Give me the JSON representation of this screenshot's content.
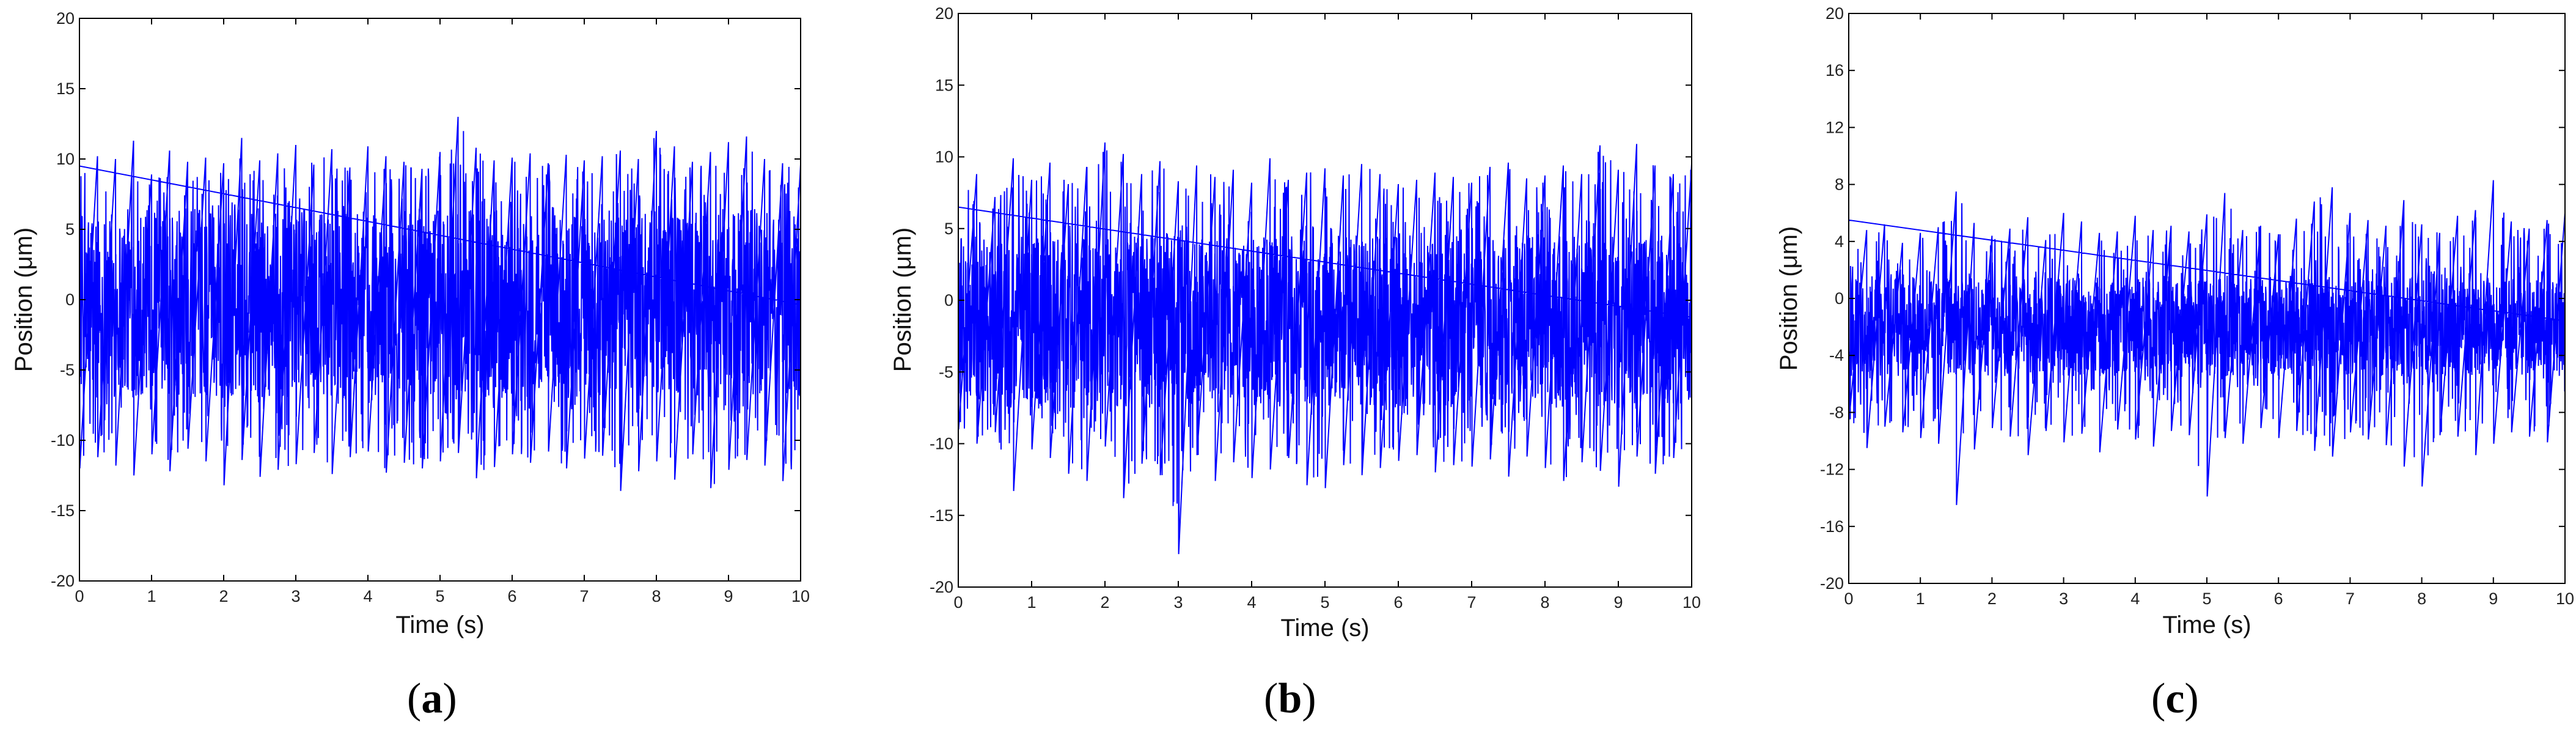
{
  "chart_data": [
    {
      "type": "line",
      "label": "a",
      "xlabel": "Time (s)",
      "ylabel": "Position (μm)",
      "xlim": [
        0,
        10
      ],
      "ylim": [
        -20,
        20
      ],
      "xticks": [
        0,
        1,
        2,
        3,
        4,
        5,
        6,
        7,
        8,
        9,
        10
      ],
      "yticks": [
        -20,
        -15,
        -10,
        -5,
        0,
        5,
        10,
        15,
        20
      ],
      "grid": false,
      "color": "#0000ff",
      "series": [
        {
          "x": [
            0.0,
            0.25,
            0.5,
            0.75,
            1.0,
            1.25,
            1.5,
            1.75,
            2.0,
            2.25,
            2.5,
            2.75,
            3.0,
            3.25,
            3.5,
            3.75,
            4.0,
            4.25,
            4.5,
            4.75,
            5.0,
            5.25,
            5.5,
            5.75,
            6.0,
            6.25,
            6.5,
            6.75,
            7.0,
            7.25,
            7.5,
            7.75,
            8.0,
            8.25,
            8.5,
            8.75,
            9.0,
            9.25,
            9.5,
            9.75,
            10.0
          ],
          "y_max": [
            9.5,
            10.2,
            10.0,
            11.3,
            8.9,
            10.6,
            9.8,
            10.1,
            9.7,
            11.5,
            9.9,
            10.4,
            11.0,
            9.6,
            10.7,
            9.4,
            10.9,
            10.2,
            9.8,
            9.3,
            10.5,
            13.0,
            10.8,
            9.9,
            10.1,
            10.4,
            9.7,
            10.3,
            9.9,
            10.2,
            10.6,
            10.0,
            12.0,
            10.9,
            9.8,
            10.5,
            11.2,
            11.6,
            10.0,
            9.7,
            9.6
          ],
          "y_min": [
            -12.0,
            -11.2,
            -11.8,
            -12.5,
            -11.0,
            -12.2,
            -10.6,
            -11.5,
            -13.2,
            -11.4,
            -12.6,
            -12.1,
            -11.7,
            -10.9,
            -12.4,
            -11.2,
            -10.8,
            -12.3,
            -11.6,
            -12.0,
            -11.5,
            -10.9,
            -12.7,
            -11.9,
            -11.0,
            -11.6,
            -10.8,
            -12.0,
            -11.3,
            -11.1,
            -13.6,
            -12.2,
            -11.5,
            -12.8,
            -11.0,
            -13.4,
            -12.1,
            -11.4,
            -11.8,
            -12.9,
            -11.3
          ],
          "band_upper": 6.5,
          "band_lower": -7.0
        }
      ]
    },
    {
      "type": "line",
      "label": "b",
      "xlabel": "Time (s)",
      "ylabel": "Position (μm)",
      "xlim": [
        0,
        10
      ],
      "ylim": [
        -20,
        20
      ],
      "xticks": [
        0,
        1,
        2,
        3,
        4,
        5,
        6,
        7,
        8,
        9,
        10
      ],
      "yticks": [
        -20,
        -15,
        -10,
        -5,
        0,
        5,
        10,
        15,
        20
      ],
      "grid": false,
      "color": "#0000ff",
      "series": [
        {
          "x": [
            0.0,
            0.25,
            0.5,
            0.75,
            1.0,
            1.25,
            1.5,
            1.75,
            2.0,
            2.25,
            2.5,
            2.75,
            3.0,
            3.25,
            3.5,
            3.75,
            4.0,
            4.25,
            4.5,
            4.75,
            5.0,
            5.25,
            5.5,
            5.75,
            6.0,
            6.25,
            6.5,
            6.75,
            7.0,
            7.25,
            7.5,
            7.75,
            8.0,
            8.25,
            8.5,
            8.75,
            9.0,
            9.25,
            9.5,
            9.75,
            10.0
          ],
          "y_max": [
            6.5,
            8.8,
            7.2,
            9.9,
            8.4,
            9.6,
            8.1,
            9.3,
            11.0,
            10.2,
            8.8,
            9.7,
            8.3,
            9.4,
            8.6,
            9.1,
            8.2,
            9.9,
            8.4,
            8.9,
            9.2,
            8.7,
            9.5,
            8.8,
            8.1,
            8.4,
            8.9,
            8.6,
            8.2,
            9.3,
            9.6,
            8.5,
            8.7,
            9.4,
            8.8,
            10.8,
            9.1,
            10.9,
            9.4,
            8.8,
            9.5
          ],
          "y_min": [
            -9.0,
            -10.0,
            -9.2,
            -13.3,
            -10.4,
            -11.0,
            -12.1,
            -12.6,
            -10.2,
            -13.8,
            -11.4,
            -12.2,
            -17.7,
            -10.8,
            -12.6,
            -11.3,
            -12.4,
            -11.8,
            -11.0,
            -12.9,
            -13.1,
            -11.5,
            -12.2,
            -11.7,
            -11.2,
            -10.8,
            -12.0,
            -11.5,
            -11.6,
            -11.1,
            -12.3,
            -10.9,
            -11.7,
            -12.6,
            -11.3,
            -11.9,
            -13.0,
            -10.9,
            -12.1,
            -11.0,
            -11.5
          ],
          "band_upper": 4.5,
          "band_lower": -7.5
        }
      ]
    },
    {
      "type": "line",
      "label": "c",
      "xlabel": "Time (s)",
      "ylabel": "Position (μm)",
      "xlim": [
        0,
        10
      ],
      "ylim": [
        -20,
        20
      ],
      "xticks": [
        0,
        1,
        2,
        3,
        4,
        5,
        6,
        7,
        8,
        9,
        10
      ],
      "yticks": [
        -20,
        -16,
        -12,
        -8,
        -4,
        0,
        4,
        8,
        12,
        16,
        20
      ],
      "grid": false,
      "color": "#0000ff",
      "series": [
        {
          "x": [
            0.0,
            0.25,
            0.5,
            0.75,
            1.0,
            1.25,
            1.5,
            1.75,
            2.0,
            2.25,
            2.5,
            2.75,
            3.0,
            3.25,
            3.5,
            3.75,
            4.0,
            4.25,
            4.5,
            4.75,
            5.0,
            5.25,
            5.5,
            5.75,
            6.0,
            6.25,
            6.5,
            6.75,
            7.0,
            7.25,
            7.5,
            7.75,
            8.0,
            8.25,
            8.5,
            8.75,
            9.0,
            9.25,
            9.5,
            9.75,
            10.0
          ],
          "y_max": [
            5.5,
            4.8,
            5.2,
            3.9,
            4.6,
            5.0,
            7.5,
            5.3,
            4.4,
            4.9,
            5.7,
            4.1,
            6.0,
            5.4,
            4.6,
            4.7,
            5.8,
            4.8,
            5.1,
            4.7,
            5.9,
            7.4,
            4.8,
            5.1,
            4.5,
            5.6,
            6.8,
            7.8,
            6.0,
            5.5,
            5.1,
            6.9,
            5.2,
            4.6,
            5.8,
            6.2,
            8.3,
            5.4,
            4.9,
            5.5,
            6.0
          ],
          "y_min": [
            -8.5,
            -10.5,
            -9.0,
            -9.4,
            -9.8,
            -10.2,
            -14.5,
            -10.6,
            -9.1,
            -9.7,
            -11.0,
            -9.3,
            -10.1,
            -9.5,
            -10.8,
            -9.2,
            -9.9,
            -10.4,
            -9.3,
            -9.6,
            -13.9,
            -9.8,
            -10.2,
            -9.1,
            -9.8,
            -9.3,
            -10.7,
            -11.1,
            -9.4,
            -9.9,
            -10.3,
            -11.8,
            -13.2,
            -9.6,
            -9.7,
            -11.0,
            -10.2,
            -9.4,
            -9.7,
            -10.1,
            -9.6
          ],
          "band_upper": 1.5,
          "band_lower": -5.5
        }
      ]
    }
  ],
  "panels": [
    {
      "label": "a",
      "open_paren": "(",
      "close_paren": ")"
    },
    {
      "label": "b",
      "open_paren": "(",
      "close_paren": ")"
    },
    {
      "label": "c",
      "open_paren": "(",
      "close_paren": ")"
    }
  ],
  "colors": {
    "trace": "#0000ff",
    "axes": "#000000"
  }
}
